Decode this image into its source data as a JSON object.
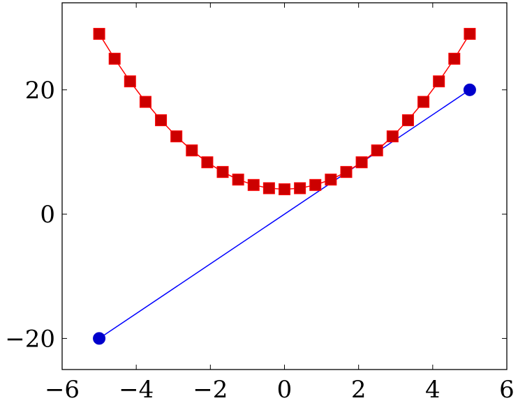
{
  "chart_data": {
    "type": "line",
    "title": "",
    "xlabel": "",
    "ylabel": "",
    "xlim": [
      -6,
      6
    ],
    "ylim": [
      -25,
      34
    ],
    "grid": false,
    "x_ticks": [
      -6,
      -4,
      -2,
      0,
      2,
      4,
      6
    ],
    "x_tick_labels": [
      "−6",
      "−4",
      "−2",
      "0",
      "2",
      "4",
      "6"
    ],
    "y_ticks": [
      -20,
      0,
      20
    ],
    "y_tick_labels": [
      "−20",
      "0",
      "20"
    ],
    "series": [
      {
        "color": "#0000ff",
        "marker_color": "#0000cc",
        "marker": "circle",
        "x": [
          -5,
          5
        ],
        "y": [
          -20,
          20
        ]
      },
      {
        "color": "#ff0000",
        "marker_color": "#cc0000",
        "marker": "square",
        "x": [
          -5,
          -4.583,
          -4.167,
          -3.75,
          -3.333,
          -2.917,
          -2.5,
          -2.083,
          -1.667,
          -1.25,
          -0.833,
          -0.417,
          0,
          0.417,
          0.833,
          1.25,
          1.667,
          2.083,
          2.5,
          2.917,
          3.333,
          3.75,
          4.167,
          4.583,
          5
        ],
        "y": [
          29,
          25,
          21.36,
          18.06,
          15.11,
          12.51,
          10.25,
          8.34,
          6.78,
          5.56,
          4.69,
          4.17,
          4,
          4.17,
          4.69,
          5.56,
          6.78,
          8.34,
          10.25,
          12.51,
          15.11,
          18.06,
          21.36,
          25,
          29
        ]
      }
    ]
  }
}
